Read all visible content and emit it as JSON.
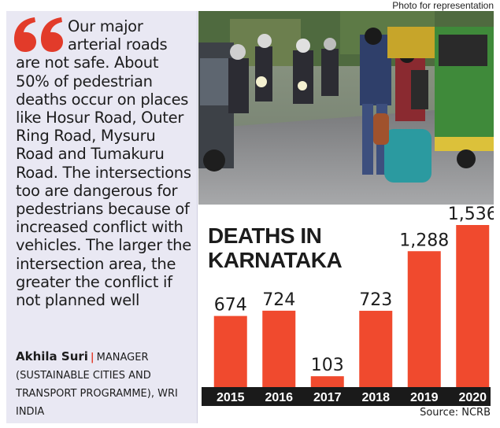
{
  "photo_credit": "Photo for representation",
  "quote": {
    "text": "Our major arterial roads are not safe. About 50% of pedestrian deaths occur on places like Hosur Road, Outer Ring Road, Mysuru Road and Tumakuru Road. The intersections too are dangerous for pedestrians because of increased conflict with vehicles. The larger the intersection area, the greater the conflict if not planned well",
    "author": "Akhila Suri",
    "role": "MANAGER (SUSTAINABLE CITIES AND TRANSPORT PROGRAMME), WRI INDIA",
    "accent_color": "#e23b2a"
  },
  "chart_data": {
    "type": "bar",
    "title": "DEATHS IN KARNATAKA",
    "categories": [
      "2015",
      "2016",
      "2017",
      "2018",
      "2019",
      "2020"
    ],
    "values": [
      674,
      724,
      103,
      723,
      1288,
      1536
    ],
    "data_labels": [
      "674",
      "724",
      "103",
      "723",
      "1,288",
      "1,536"
    ],
    "source": "Source: NCRB",
    "bar_color": "#f04a2e",
    "axis_band_color": "#1a1a1a",
    "grid": false,
    "ylim": [
      0,
      1536
    ]
  }
}
